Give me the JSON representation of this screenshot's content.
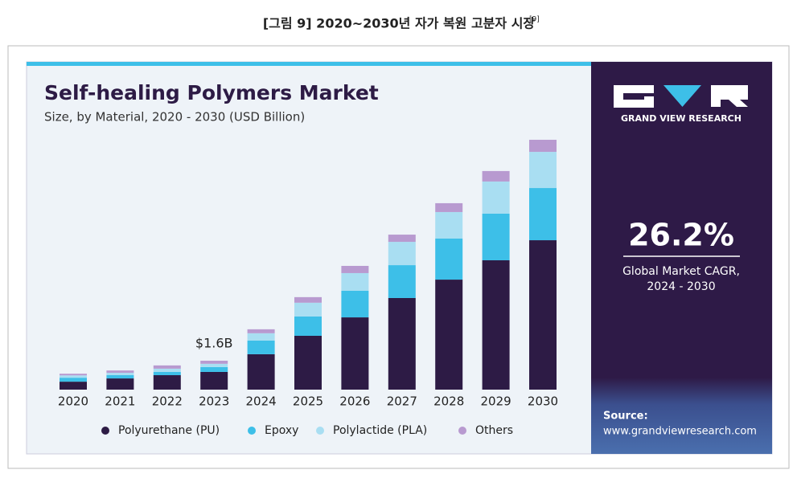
{
  "header": {
    "caption": "[그림 9] 2020~2030년 자가 복원 고분자 시장",
    "ref": "[9]"
  },
  "chart_data": {
    "type": "stacked_bar",
    "title": "Self-healing Polymers Market",
    "subtitle": "Size, by Material, 2020 - 2030 (USD Billion)",
    "categories": [
      "2020",
      "2021",
      "2022",
      "2023",
      "2024",
      "2025",
      "2026",
      "2027",
      "2028",
      "2029",
      "2030"
    ],
    "series": [
      {
        "name": "Polyurethane (PU)",
        "color": "#2d1b45",
        "values": [
          0.44,
          0.62,
          0.8,
          0.98,
          1.96,
          2.98,
          4.0,
          5.07,
          6.09,
          7.16,
          8.27
        ]
      },
      {
        "name": "Epoxy",
        "color": "#3dbfe8",
        "values": [
          0.22,
          0.18,
          0.18,
          0.27,
          0.76,
          1.07,
          1.47,
          1.82,
          2.27,
          2.58,
          2.89
        ]
      },
      {
        "name": "Polylactide (PLA)",
        "color": "#a9def2",
        "values": [
          0.13,
          0.13,
          0.18,
          0.18,
          0.4,
          0.76,
          0.98,
          1.29,
          1.47,
          1.78,
          2.0
        ]
      },
      {
        "name": "Others",
        "color": "#b89ad0",
        "values": [
          0.09,
          0.13,
          0.18,
          0.17,
          0.22,
          0.31,
          0.4,
          0.4,
          0.49,
          0.58,
          0.67
        ]
      }
    ],
    "annotations": [
      {
        "category": "2023",
        "text": "$1.6B",
        "value": 1.6
      }
    ],
    "legend": "bottom"
  },
  "sidebar": {
    "brand": "GRAND VIEW RESEARCH",
    "cagr": "26.2%",
    "cagr_caption": [
      "Global Market CAGR,",
      "2024 - 2030"
    ],
    "source_label": "Source:",
    "source_url": "www.grandviewresearch.com"
  }
}
